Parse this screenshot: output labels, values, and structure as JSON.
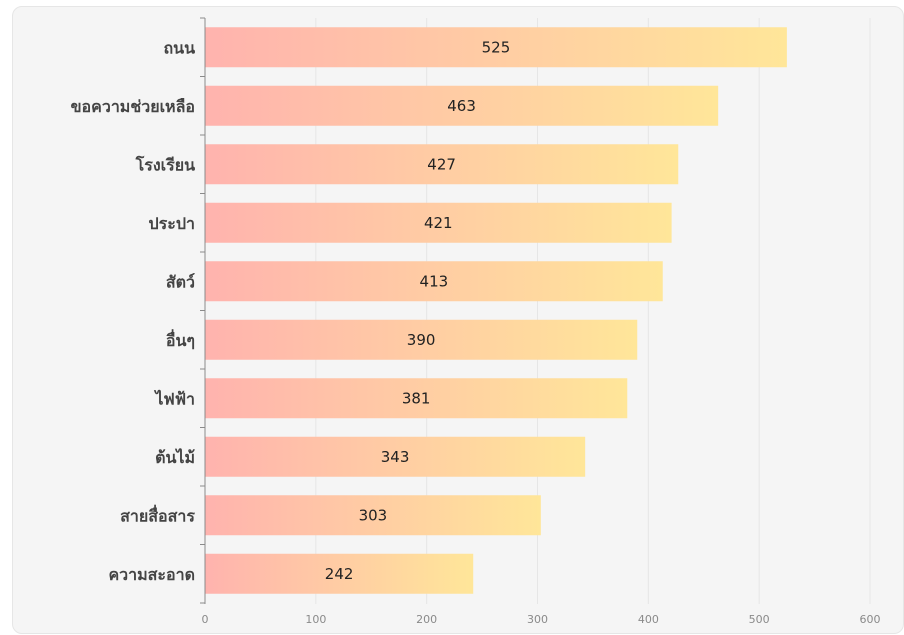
{
  "chart_data": {
    "type": "bar",
    "orientation": "horizontal",
    "categories": [
      "ถนน",
      "ขอความช่วยเหลือ",
      "โรงเรียน",
      "ประปา",
      "สัตว์",
      "อื่นๆ",
      "ไฟฟ้า",
      "ต้นไม้",
      "สายสื่อสาร",
      "ความสะอาด"
    ],
    "values": [
      525,
      463,
      427,
      421,
      413,
      390,
      381,
      343,
      303,
      242
    ],
    "xlim": [
      0,
      600
    ],
    "xticks": [
      0,
      100,
      200,
      300,
      400,
      500,
      600
    ],
    "grid": true,
    "colors": {
      "bar_start": "#ffb3ae",
      "bar_end": "#ffe699",
      "grid": "#e6e6e6",
      "axis": "#8a8a8a"
    }
  }
}
